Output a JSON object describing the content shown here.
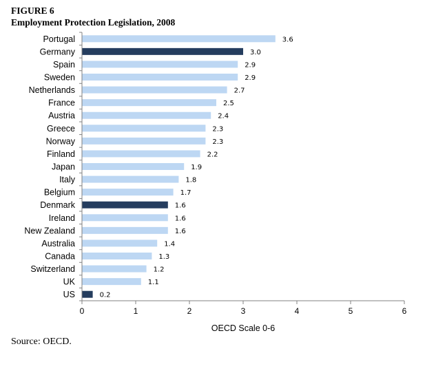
{
  "figure": {
    "label": "FIGURE 6",
    "title": "Employment Protection Legislation, 2008",
    "source": "Source: OECD."
  },
  "colors": {
    "bar_default": "#bdd7f3",
    "bar_highlight": "#253d5e",
    "axis": "#808080"
  },
  "chart_data": {
    "type": "bar",
    "orientation": "horizontal",
    "categories": [
      "Portugal",
      "Germany",
      "Spain",
      "Sweden",
      "Netherlands",
      "France",
      "Austria",
      "Greece",
      "Norway",
      "Finland",
      "Japan",
      "Italy",
      "Belgium",
      "Denmark",
      "Ireland",
      "New Zealand",
      "Australia",
      "Canada",
      "Switzerland",
      "UK",
      "US"
    ],
    "values": [
      3.6,
      3.0,
      2.9,
      2.9,
      2.7,
      2.5,
      2.4,
      2.3,
      2.3,
      2.2,
      1.9,
      1.8,
      1.7,
      1.6,
      1.6,
      1.6,
      1.4,
      1.3,
      1.2,
      1.1,
      0.2
    ],
    "highlighted": [
      "Germany",
      "Denmark",
      "US"
    ],
    "xlabel": "OECD Scale 0-6",
    "ylabel": "",
    "xlim": [
      0,
      6
    ],
    "xticks": [
      0,
      1,
      2,
      3,
      4,
      5,
      6
    ],
    "grid": false,
    "legend": "none"
  }
}
